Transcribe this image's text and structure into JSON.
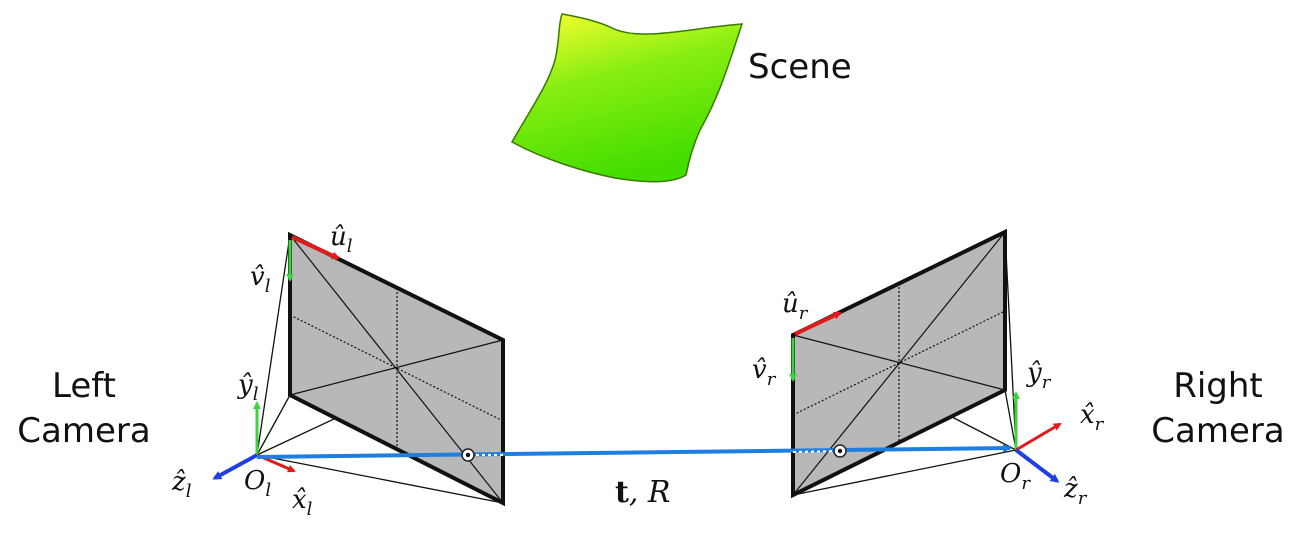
{
  "scene_label": "Scene",
  "left_camera": {
    "label_line1": "Left",
    "label_line2": "Camera",
    "u_axis": "û",
    "u_sub": "l",
    "v_axis": "v̂",
    "v_sub": "l",
    "y_axis": "ŷ",
    "y_sub": "l",
    "x_axis": "x̂",
    "x_sub": "l",
    "z_axis": "ẑ",
    "z_sub": "l",
    "origin": "O",
    "origin_sub": "l"
  },
  "right_camera": {
    "label_line1": "Right",
    "label_line2": "Camera",
    "u_axis": "û",
    "u_sub": "r",
    "v_axis": "v̂",
    "v_sub": "r",
    "y_axis": "ŷ",
    "y_sub": "r",
    "x_axis": "x̂",
    "x_sub": "r",
    "z_axis": "ẑ",
    "z_sub": "r",
    "origin": "O",
    "origin_sub": "r"
  },
  "baseline": {
    "t_label": "t",
    "r_label": ", R"
  },
  "colors": {
    "scene_top": "#ffff33",
    "scene_bottom": "#44dd00",
    "image_plane": "#b8b8b8",
    "baseline": "#1e7fe0",
    "u_axis": "#e11b1b",
    "v_axis": "#3fd23f",
    "x_axis": "#e11b1b",
    "y_axis": "#3fd23f",
    "z_axis": "#1f3fe0"
  }
}
